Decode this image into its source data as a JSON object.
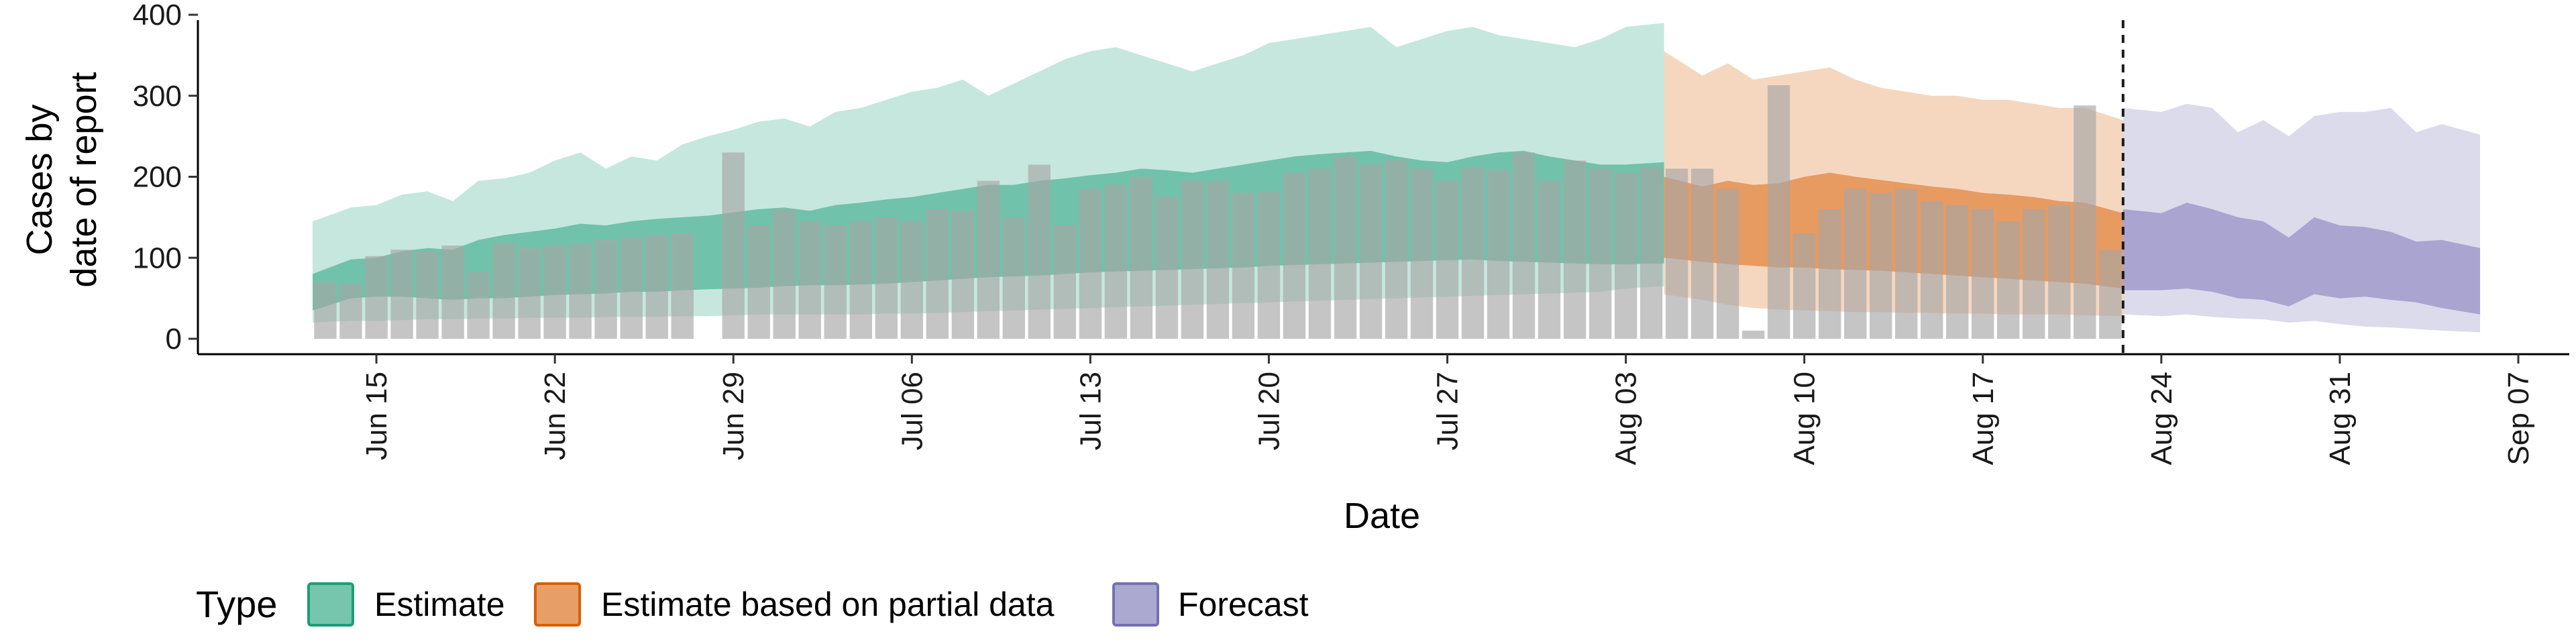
{
  "chart_data": {
    "type": "bar",
    "xlabel": "Date",
    "ylabel_lines": [
      "Cases by",
      "date of report"
    ],
    "ylim": [
      0,
      400
    ],
    "y_ticks": [
      0,
      100,
      200,
      300,
      400
    ],
    "x_ticks": [
      {
        "date": "2020-06-15",
        "label": "Jun 15"
      },
      {
        "date": "2020-06-22",
        "label": "Jun 22"
      },
      {
        "date": "2020-06-29",
        "label": "Jun 29"
      },
      {
        "date": "2020-07-06",
        "label": "Jul 06"
      },
      {
        "date": "2020-07-13",
        "label": "Jul 13"
      },
      {
        "date": "2020-07-20",
        "label": "Jul 20"
      },
      {
        "date": "2020-07-27",
        "label": "Jul 27"
      },
      {
        "date": "2020-08-03",
        "label": "Aug 03"
      },
      {
        "date": "2020-08-10",
        "label": "Aug 10"
      },
      {
        "date": "2020-08-17",
        "label": "Aug 17"
      },
      {
        "date": "2020-08-24",
        "label": "Aug 24"
      },
      {
        "date": "2020-08-31",
        "label": "Aug 31"
      },
      {
        "date": "2020-09-07",
        "label": "Sep 07"
      }
    ],
    "xlim": [
      "2020-06-08",
      "2020-09-09"
    ],
    "report_dates": [
      "2020-06-13",
      "2020-06-14",
      "2020-06-15",
      "2020-06-16",
      "2020-06-17",
      "2020-06-18",
      "2020-06-19",
      "2020-06-20",
      "2020-06-21",
      "2020-06-22",
      "2020-06-23",
      "2020-06-24",
      "2020-06-25",
      "2020-06-26",
      "2020-06-27",
      "2020-06-28",
      "2020-06-29",
      "2020-06-30",
      "2020-07-01",
      "2020-07-02",
      "2020-07-03",
      "2020-07-04",
      "2020-07-05",
      "2020-07-06",
      "2020-07-07",
      "2020-07-08",
      "2020-07-09",
      "2020-07-10",
      "2020-07-11",
      "2020-07-12",
      "2020-07-13",
      "2020-07-14",
      "2020-07-15",
      "2020-07-16",
      "2020-07-17",
      "2020-07-18",
      "2020-07-19",
      "2020-07-20",
      "2020-07-21",
      "2020-07-22",
      "2020-07-23",
      "2020-07-24",
      "2020-07-25",
      "2020-07-26",
      "2020-07-27",
      "2020-07-28",
      "2020-07-29",
      "2020-07-30",
      "2020-07-31",
      "2020-08-01",
      "2020-08-02",
      "2020-08-03",
      "2020-08-04",
      "2020-08-05",
      "2020-08-06",
      "2020-08-07",
      "2020-08-08",
      "2020-08-09",
      "2020-08-10",
      "2020-08-11",
      "2020-08-12",
      "2020-08-13",
      "2020-08-14",
      "2020-08-15",
      "2020-08-16",
      "2020-08-17",
      "2020-08-18",
      "2020-08-19",
      "2020-08-20",
      "2020-08-21",
      "2020-08-22"
    ],
    "reported_cases": [
      70,
      68,
      102,
      110,
      108,
      115,
      82,
      118,
      112,
      115,
      117,
      122,
      125,
      128,
      130,
      0,
      230,
      140,
      160,
      145,
      140,
      145,
      150,
      145,
      160,
      158,
      195,
      150,
      215,
      140,
      185,
      190,
      200,
      175,
      195,
      195,
      180,
      182,
      205,
      210,
      225,
      215,
      220,
      210,
      195,
      212,
      208,
      230,
      195,
      220,
      210,
      205,
      212,
      210,
      210,
      185,
      10,
      313,
      130,
      160,
      185,
      180,
      185,
      170,
      165,
      160,
      145,
      160,
      165,
      288,
      110
    ],
    "series": [
      {
        "name": "Estimate",
        "color": "#1b9e77",
        "dates": [
          "2020-06-13",
          "2020-06-14",
          "2020-06-15",
          "2020-06-16",
          "2020-06-17",
          "2020-06-18",
          "2020-06-19",
          "2020-06-20",
          "2020-06-21",
          "2020-06-22",
          "2020-06-23",
          "2020-06-24",
          "2020-06-25",
          "2020-06-26",
          "2020-06-27",
          "2020-06-28",
          "2020-06-29",
          "2020-06-30",
          "2020-07-01",
          "2020-07-02",
          "2020-07-03",
          "2020-07-04",
          "2020-07-05",
          "2020-07-06",
          "2020-07-07",
          "2020-07-08",
          "2020-07-09",
          "2020-07-10",
          "2020-07-11",
          "2020-07-12",
          "2020-07-13",
          "2020-07-14",
          "2020-07-15",
          "2020-07-16",
          "2020-07-17",
          "2020-07-18",
          "2020-07-19",
          "2020-07-20",
          "2020-07-21",
          "2020-07-22",
          "2020-07-23",
          "2020-07-24",
          "2020-07-25",
          "2020-07-26",
          "2020-07-27",
          "2020-07-28",
          "2020-07-29",
          "2020-07-30",
          "2020-07-31",
          "2020-08-01",
          "2020-08-02",
          "2020-08-03",
          "2020-08-04"
        ],
        "lower_90": [
          20,
          22,
          22,
          23,
          24,
          24,
          25,
          25,
          26,
          26,
          26,
          27,
          27,
          27,
          28,
          28,
          29,
          30,
          30,
          30,
          30,
          30,
          31,
          31,
          32,
          33,
          34,
          35,
          36,
          37,
          38,
          39,
          40,
          41,
          42,
          43,
          44,
          45,
          46,
          47,
          48,
          49,
          50,
          51,
          52,
          53,
          54,
          55,
          56,
          57,
          58,
          62,
          65
        ],
        "upper_90": [
          145,
          162,
          165,
          178,
          182,
          170,
          195,
          198,
          205,
          220,
          230,
          210,
          225,
          220,
          240,
          250,
          258,
          268,
          272,
          262,
          280,
          285,
          295,
          305,
          310,
          320,
          300,
          315,
          330,
          345,
          355,
          360,
          350,
          340,
          330,
          340,
          350,
          365,
          370,
          375,
          380,
          385,
          360,
          370,
          380,
          385,
          375,
          370,
          365,
          360,
          370,
          385,
          390
        ],
        "lower_50": [
          35,
          50,
          52,
          52,
          50,
          48,
          50,
          50,
          52,
          54,
          55,
          56,
          58,
          58,
          60,
          61,
          62,
          63,
          65,
          66,
          66,
          67,
          68,
          70,
          72,
          74,
          76,
          77,
          78,
          80,
          82,
          83,
          84,
          85,
          86,
          87,
          88,
          90,
          91,
          92,
          93,
          94,
          95,
          96,
          97,
          98,
          96,
          95,
          94,
          93,
          92,
          92,
          93
        ],
        "upper_50": [
          80,
          98,
          100,
          108,
          112,
          110,
          122,
          128,
          132,
          136,
          142,
          140,
          145,
          148,
          150,
          152,
          156,
          160,
          162,
          158,
          165,
          168,
          172,
          175,
          180,
          185,
          190,
          190,
          195,
          198,
          202,
          205,
          210,
          208,
          205,
          210,
          215,
          220,
          225,
          228,
          230,
          232,
          225,
          220,
          218,
          225,
          230,
          232,
          225,
          220,
          215,
          215,
          218
        ]
      },
      {
        "name": "Estimate based on partial data",
        "color": "#d95f02",
        "dates": [
          "2020-08-05",
          "2020-08-06",
          "2020-08-07",
          "2020-08-08",
          "2020-08-09",
          "2020-08-10",
          "2020-08-11",
          "2020-08-12",
          "2020-08-13",
          "2020-08-14",
          "2020-08-15",
          "2020-08-16",
          "2020-08-17",
          "2020-08-18",
          "2020-08-19",
          "2020-08-20",
          "2020-08-21",
          "2020-08-22"
        ],
        "lower_90": [
          55,
          48,
          42,
          38,
          36,
          35,
          34,
          33,
          33,
          32,
          32,
          31,
          31,
          30,
          30,
          30,
          29,
          28
        ],
        "upper_90": [
          355,
          325,
          340,
          320,
          325,
          330,
          335,
          320,
          310,
          305,
          300,
          300,
          295,
          295,
          290,
          285,
          285,
          270
        ],
        "lower_50": [
          100,
          95,
          92,
          90,
          88,
          88,
          86,
          85,
          84,
          82,
          80,
          78,
          76,
          74,
          72,
          70,
          68,
          62
        ],
        "upper_50": [
          200,
          188,
          195,
          190,
          192,
          200,
          205,
          200,
          196,
          192,
          188,
          185,
          180,
          178,
          175,
          170,
          168,
          155
        ]
      },
      {
        "name": "Forecast",
        "color": "#7570b3",
        "dates": [
          "2020-08-23",
          "2020-08-24",
          "2020-08-25",
          "2020-08-26",
          "2020-08-27",
          "2020-08-28",
          "2020-08-29",
          "2020-08-30",
          "2020-08-31",
          "2020-09-01",
          "2020-09-02",
          "2020-09-03",
          "2020-09-04",
          "2020-09-05"
        ],
        "lower_90": [
          30,
          28,
          30,
          27,
          25,
          24,
          20,
          22,
          18,
          15,
          14,
          12,
          10,
          8
        ],
        "upper_90": [
          285,
          280,
          290,
          285,
          255,
          270,
          250,
          275,
          280,
          280,
          285,
          255,
          265,
          252
        ],
        "lower_50": [
          60,
          60,
          62,
          58,
          50,
          48,
          40,
          55,
          50,
          52,
          48,
          45,
          38,
          30
        ],
        "upper_50": [
          160,
          155,
          168,
          160,
          150,
          145,
          125,
          150,
          140,
          138,
          132,
          120,
          122,
          112
        ]
      }
    ],
    "vline_date": "2020-08-22",
    "legend": {
      "title": "Type",
      "position": "bottom",
      "items": [
        "Estimate",
        "Estimate based on partial data",
        "Forecast"
      ]
    }
  }
}
